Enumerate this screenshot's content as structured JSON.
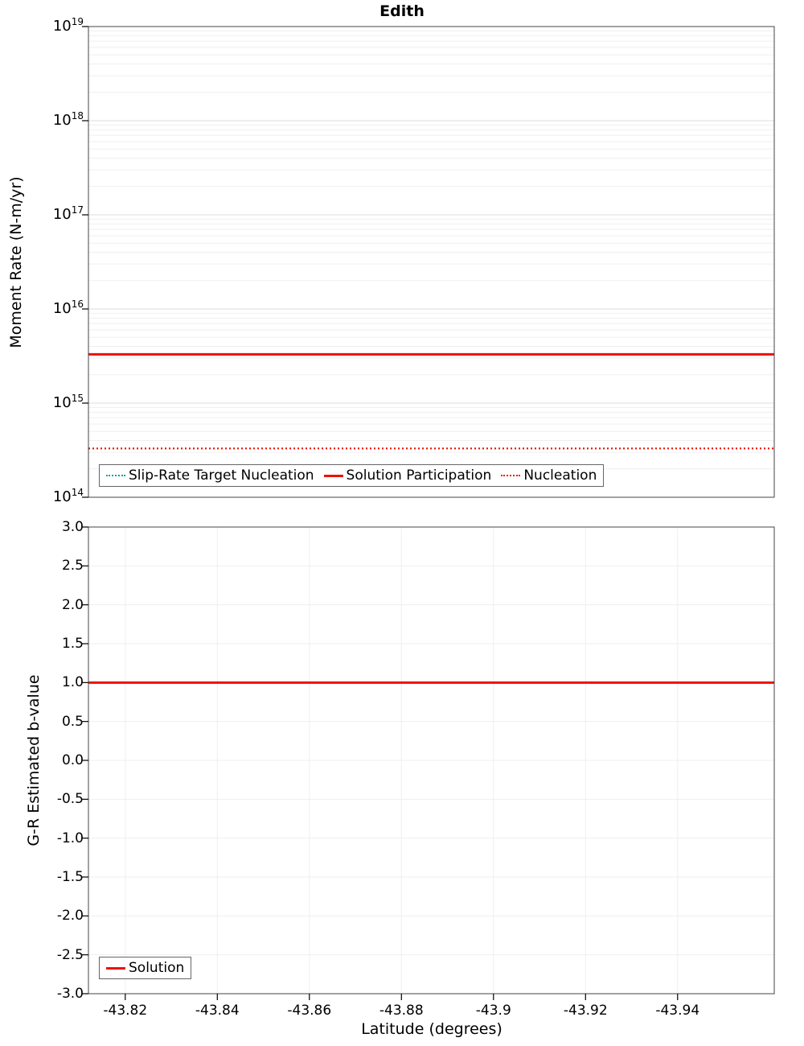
{
  "title": "Edith",
  "colors": {
    "series_red": "#ee1100",
    "series_teal": "#00a0a0",
    "grid_minor": "#efefef",
    "grid_major": "#dddddd",
    "plot_border": "#444444",
    "tick": "#000000"
  },
  "chart_data": [
    {
      "type": "line",
      "panel": "moment-rate",
      "title": "Edith",
      "ylabel": "Moment Rate (N-m/yr)",
      "yscale": "log",
      "ylim": [
        100000000000000.0,
        1e+19
      ],
      "ytick_exponents": [
        14,
        15,
        16,
        17,
        18,
        19
      ],
      "x_range": [
        -43.812,
        -43.961
      ],
      "grid": true,
      "legend_position": "bottom-left-inside",
      "series": [
        {
          "name": "Slip-Rate Target Nucleation",
          "style": "dotted",
          "color": "#00a0a0",
          "value": 330000000000000.0
        },
        {
          "name": "Solution Participation",
          "style": "solid",
          "color": "#ee1100",
          "value": 3300000000000000.0
        },
        {
          "name": "Nucleation",
          "style": "dotted",
          "color": "#ee1100",
          "value": 330000000000000.0
        }
      ]
    },
    {
      "type": "line",
      "panel": "b-value",
      "ylabel": "G-R Estimated b-value",
      "xlabel": "Latitude (degrees)",
      "yscale": "linear",
      "ylim": [
        -3.0,
        3.0
      ],
      "yticks": [
        "3.0",
        "2.5",
        "2.0",
        "1.5",
        "1.0",
        "0.5",
        "0.0",
        "-0.5",
        "-1.0",
        "-1.5",
        "-2.0",
        "-2.5",
        "-3.0"
      ],
      "x_range": [
        -43.812,
        -43.961
      ],
      "xticks": [
        {
          "value": -43.82,
          "label": "-43.82"
        },
        {
          "value": -43.84,
          "label": "-43.84"
        },
        {
          "value": -43.86,
          "label": "-43.86"
        },
        {
          "value": -43.88,
          "label": "-43.88"
        },
        {
          "value": -43.9,
          "label": "-43.9"
        },
        {
          "value": -43.92,
          "label": "-43.92"
        },
        {
          "value": -43.94,
          "label": "-43.94"
        }
      ],
      "grid": true,
      "legend_position": "bottom-left-inside",
      "series": [
        {
          "name": "Solution",
          "style": "solid",
          "color": "#ee1100",
          "value": 1.0
        }
      ]
    }
  ]
}
